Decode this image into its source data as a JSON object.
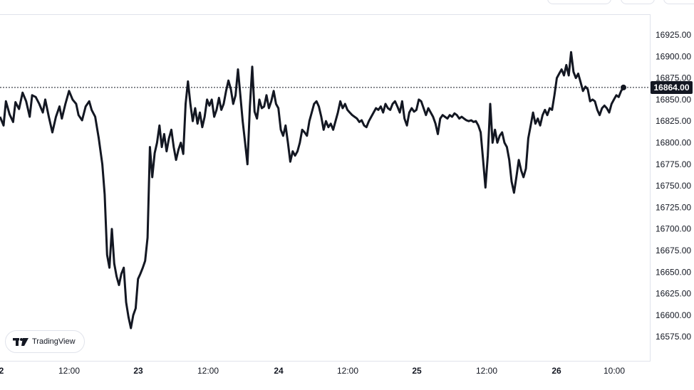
{
  "chart_data": {
    "type": "line",
    "symbol_note": "",
    "title": "",
    "xlabel": "",
    "ylabel": "",
    "ylim": [
      16555,
      16940
    ],
    "y_ticks": [
      "16925.00",
      "16900.00",
      "16875.00",
      "16850.00",
      "16825.00",
      "16800.00",
      "16775.00",
      "16750.00",
      "16725.00",
      "16700.00",
      "16675.00",
      "16650.00",
      "16625.00",
      "16600.00",
      "16575.00"
    ],
    "x_ticks": [
      {
        "label": "2",
        "bold": true
      },
      {
        "label": "12:00",
        "bold": false
      },
      {
        "label": "23",
        "bold": true
      },
      {
        "label": "12:00",
        "bold": false
      },
      {
        "label": "24",
        "bold": true
      },
      {
        "label": "12:00",
        "bold": false
      },
      {
        "label": "25",
        "bold": true
      },
      {
        "label": "12:00",
        "bold": false
      },
      {
        "label": "26",
        "bold": true
      },
      {
        "label": "10:00",
        "bold": false
      }
    ],
    "last_price": "16864.00",
    "last_price_value": 16864,
    "line_color": "#131722",
    "series": [
      {
        "values": [
          [
            0.0,
            16830
          ],
          [
            0.03,
            16820
          ],
          [
            0.05,
            16848
          ],
          [
            0.08,
            16833
          ],
          [
            0.11,
            16824
          ],
          [
            0.13,
            16847
          ],
          [
            0.16,
            16839
          ],
          [
            0.19,
            16858
          ],
          [
            0.22,
            16848
          ],
          [
            0.25,
            16830
          ],
          [
            0.27,
            16855
          ],
          [
            0.3,
            16853
          ],
          [
            0.33,
            16845
          ],
          [
            0.36,
            16835
          ],
          [
            0.38,
            16850
          ],
          [
            0.41,
            16830
          ],
          [
            0.44,
            16812
          ],
          [
            0.47,
            16830
          ],
          [
            0.5,
            16842
          ],
          [
            0.52,
            16828
          ],
          [
            0.55,
            16845
          ],
          [
            0.58,
            16860
          ],
          [
            0.61,
            16850
          ],
          [
            0.64,
            16845
          ],
          [
            0.66,
            16832
          ],
          [
            0.69,
            16826
          ],
          [
            0.72,
            16842
          ],
          [
            0.75,
            16848
          ],
          [
            0.77,
            16838
          ],
          [
            0.8,
            16830
          ],
          [
            0.83,
            16805
          ],
          [
            0.86,
            16775
          ],
          [
            0.88,
            16740
          ],
          [
            0.9,
            16670
          ],
          [
            0.92,
            16655
          ],
          [
            0.94,
            16700
          ],
          [
            0.96,
            16660
          ],
          [
            0.98,
            16645
          ],
          [
            1.0,
            16635
          ],
          [
            1.02,
            16648
          ],
          [
            1.04,
            16655
          ],
          [
            1.06,
            16615
          ],
          [
            1.08,
            16598
          ],
          [
            1.1,
            16585
          ],
          [
            1.12,
            16600
          ],
          [
            1.14,
            16608
          ],
          [
            1.16,
            16642
          ],
          [
            1.18,
            16648
          ],
          [
            1.2,
            16655
          ],
          [
            1.22,
            16663
          ],
          [
            1.24,
            16690
          ],
          [
            1.26,
            16795
          ],
          [
            1.28,
            16760
          ],
          [
            1.3,
            16788
          ],
          [
            1.32,
            16800
          ],
          [
            1.34,
            16820
          ],
          [
            1.36,
            16795
          ],
          [
            1.38,
            16810
          ],
          [
            1.4,
            16790
          ],
          [
            1.42,
            16805
          ],
          [
            1.44,
            16815
          ],
          [
            1.46,
            16795
          ],
          [
            1.48,
            16780
          ],
          [
            1.5,
            16792
          ],
          [
            1.52,
            16800
          ],
          [
            1.54,
            16787
          ],
          [
            1.56,
            16845
          ],
          [
            1.58,
            16871
          ],
          [
            1.6,
            16845
          ],
          [
            1.62,
            16825
          ],
          [
            1.64,
            16840
          ],
          [
            1.66,
            16822
          ],
          [
            1.68,
            16835
          ],
          [
            1.7,
            16818
          ],
          [
            1.72,
            16830
          ],
          [
            1.74,
            16850
          ],
          [
            1.76,
            16843
          ],
          [
            1.78,
            16850
          ],
          [
            1.8,
            16830
          ],
          [
            1.82,
            16838
          ],
          [
            1.84,
            16852
          ],
          [
            1.86,
            16838
          ],
          [
            1.88,
            16845
          ],
          [
            1.9,
            16860
          ],
          [
            1.92,
            16872
          ],
          [
            1.94,
            16862
          ],
          [
            1.96,
            16845
          ],
          [
            1.98,
            16855
          ],
          [
            2.0,
            16885
          ],
          [
            2.02,
            16855
          ],
          [
            2.04,
            16825
          ],
          [
            2.06,
            16800
          ],
          [
            2.08,
            16775
          ],
          [
            2.1,
            16842
          ],
          [
            2.12,
            16888
          ],
          [
            2.14,
            16836
          ],
          [
            2.16,
            16828
          ],
          [
            2.18,
            16850
          ],
          [
            2.2,
            16840
          ],
          [
            2.22,
            16842
          ],
          [
            2.24,
            16855
          ],
          [
            2.26,
            16840
          ],
          [
            2.28,
            16848
          ],
          [
            2.3,
            16860
          ],
          [
            2.32,
            16845
          ],
          [
            2.34,
            16840
          ],
          [
            2.36,
            16815
          ],
          [
            2.38,
            16808
          ],
          [
            2.4,
            16820
          ],
          [
            2.42,
            16800
          ],
          [
            2.44,
            16778
          ],
          [
            2.46,
            16790
          ],
          [
            2.48,
            16785
          ],
          [
            2.5,
            16790
          ],
          [
            2.52,
            16800
          ],
          [
            2.54,
            16815
          ],
          [
            2.56,
            16812
          ],
          [
            2.58,
            16808
          ],
          [
            2.6,
            16825
          ],
          [
            2.62,
            16835
          ],
          [
            2.64,
            16845
          ],
          [
            2.66,
            16848
          ],
          [
            2.68,
            16842
          ],
          [
            2.7,
            16830
          ],
          [
            2.72,
            16815
          ],
          [
            2.74,
            16825
          ],
          [
            2.76,
            16818
          ],
          [
            2.78,
            16822
          ],
          [
            2.8,
            16815
          ],
          [
            2.82,
            16825
          ],
          [
            2.84,
            16835
          ],
          [
            2.86,
            16848
          ],
          [
            2.88,
            16840
          ],
          [
            2.9,
            16845
          ],
          [
            2.92,
            16838
          ],
          [
            2.94,
            16835
          ],
          [
            2.96,
            16832
          ],
          [
            2.98,
            16830
          ],
          [
            3.0,
            16828
          ],
          [
            3.02,
            16824
          ],
          [
            3.04,
            16826
          ],
          [
            3.06,
            16820
          ],
          [
            3.08,
            16818
          ],
          [
            3.1,
            16825
          ],
          [
            3.12,
            16830
          ],
          [
            3.14,
            16835
          ],
          [
            3.16,
            16840
          ],
          [
            3.18,
            16838
          ],
          [
            3.2,
            16842
          ],
          [
            3.22,
            16835
          ],
          [
            3.24,
            16845
          ],
          [
            3.26,
            16840
          ],
          [
            3.28,
            16838
          ],
          [
            3.3,
            16845
          ],
          [
            3.32,
            16848
          ],
          [
            3.34,
            16842
          ],
          [
            3.36,
            16835
          ],
          [
            3.38,
            16848
          ],
          [
            3.4,
            16828
          ],
          [
            3.42,
            16820
          ],
          [
            3.44,
            16835
          ],
          [
            3.46,
            16840
          ],
          [
            3.48,
            16836
          ],
          [
            3.5,
            16838
          ],
          [
            3.52,
            16850
          ],
          [
            3.54,
            16848
          ],
          [
            3.56,
            16840
          ],
          [
            3.58,
            16832
          ],
          [
            3.6,
            16840
          ],
          [
            3.62,
            16835
          ],
          [
            3.64,
            16830
          ],
          [
            3.66,
            16822
          ],
          [
            3.68,
            16810
          ],
          [
            3.7,
            16828
          ],
          [
            3.72,
            16832
          ],
          [
            3.74,
            16830
          ],
          [
            3.76,
            16828
          ],
          [
            3.78,
            16832
          ],
          [
            3.8,
            16830
          ],
          [
            3.82,
            16834
          ],
          [
            3.84,
            16832
          ],
          [
            3.86,
            16828
          ],
          [
            3.88,
            16830
          ],
          [
            3.9,
            16828
          ],
          [
            3.92,
            16826
          ],
          [
            3.94,
            16825
          ],
          [
            3.96,
            16826
          ],
          [
            3.98,
            16824
          ],
          [
            4.0,
            16825
          ],
          [
            4.02,
            16820
          ],
          [
            4.04,
            16812
          ],
          [
            4.06,
            16780
          ],
          [
            4.08,
            16748
          ],
          [
            4.1,
            16785
          ],
          [
            4.12,
            16845
          ],
          [
            4.14,
            16800
          ],
          [
            4.16,
            16815
          ],
          [
            4.18,
            16800
          ],
          [
            4.2,
            16808
          ],
          [
            4.22,
            16812
          ],
          [
            4.24,
            16800
          ],
          [
            4.26,
            16795
          ],
          [
            4.28,
            16780
          ],
          [
            4.3,
            16755
          ],
          [
            4.32,
            16742
          ],
          [
            4.34,
            16760
          ],
          [
            4.36,
            16780
          ],
          [
            4.38,
            16768
          ],
          [
            4.4,
            16760
          ],
          [
            4.42,
            16770
          ],
          [
            4.44,
            16805
          ],
          [
            4.46,
            16820
          ],
          [
            4.48,
            16835
          ],
          [
            4.5,
            16822
          ],
          [
            4.52,
            16828
          ],
          [
            4.54,
            16820
          ],
          [
            4.56,
            16832
          ],
          [
            4.58,
            16838
          ],
          [
            4.6,
            16832
          ],
          [
            4.62,
            16840
          ],
          [
            4.64,
            16838
          ],
          [
            4.66,
            16855
          ],
          [
            4.68,
            16875
          ],
          [
            4.7,
            16880
          ],
          [
            4.72,
            16885
          ],
          [
            4.74,
            16878
          ],
          [
            4.76,
            16890
          ],
          [
            4.78,
            16878
          ],
          [
            4.8,
            16905
          ],
          [
            4.82,
            16882
          ],
          [
            4.84,
            16875
          ],
          [
            4.86,
            16880
          ],
          [
            4.88,
            16870
          ],
          [
            4.9,
            16860
          ],
          [
            4.92,
            16865
          ],
          [
            4.94,
            16862
          ],
          [
            4.96,
            16848
          ],
          [
            4.98,
            16850
          ],
          [
            5.0,
            16848
          ],
          [
            5.02,
            16838
          ],
          [
            5.04,
            16832
          ],
          [
            5.06,
            16840
          ],
          [
            5.08,
            16843
          ],
          [
            5.1,
            16840
          ],
          [
            5.12,
            16835
          ],
          [
            5.14,
            16845
          ],
          [
            5.16,
            16850
          ],
          [
            5.18,
            16855
          ],
          [
            5.2,
            16853
          ],
          [
            5.22,
            16860
          ],
          [
            5.24,
            16864
          ]
        ]
      }
    ]
  },
  "branding": {
    "text": "TradingView",
    "icon": "tradingview-logo-icon"
  }
}
